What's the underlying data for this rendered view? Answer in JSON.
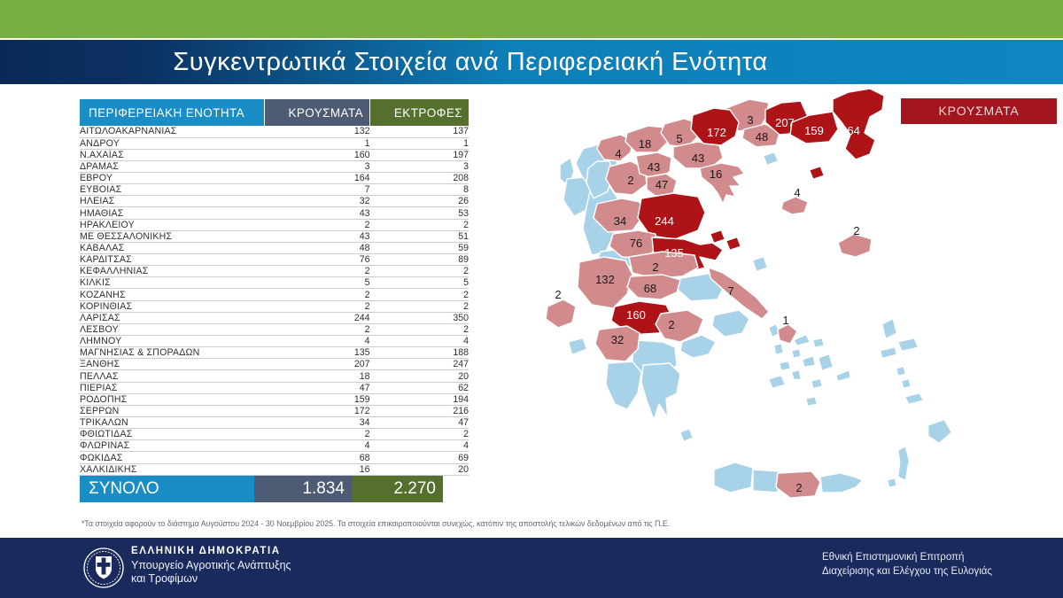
{
  "header": {
    "title": "Συγκεντρωτικά Στοιχεία ανά Περιφερειακή Ενότητα"
  },
  "chart_data": {
    "type": "table",
    "title": "Συγκεντρωτικά Στοιχεία ανά Περιφερειακή Ενότητα",
    "columns": [
      "ΠΕΡΙΦΕΡΕΙΑΚΗ ΕΝΟΤΗΤΑ",
      "ΚΡΟΥΣΜΑΤΑ",
      "ΕΚΤΡΟΦΕΣ"
    ],
    "rows": [
      [
        "ΑΙΤΩΛΟΑΚΑΡΝΑΝΙΑΣ",
        132,
        137
      ],
      [
        "ΑΝΔΡΟΥ",
        1,
        1
      ],
      [
        "Ν.ΑΧΑΪΑΣ",
        160,
        197
      ],
      [
        "ΔΡΑΜΑΣ",
        3,
        3
      ],
      [
        "ΕΒΡΟΥ",
        164,
        208
      ],
      [
        "ΕΥΒΟΙΑΣ",
        7,
        8
      ],
      [
        "ΗΛΕΙΑΣ",
        32,
        26
      ],
      [
        "ΗΜΑΘΙΑΣ",
        43,
        53
      ],
      [
        "ΗΡΑΚΛΕΙΟΥ",
        2,
        2
      ],
      [
        "ΜΕ ΘΕΣΣΑΛΟΝΙΚΗΣ",
        43,
        51
      ],
      [
        "ΚΑΒΑΛΑΣ",
        48,
        59
      ],
      [
        "ΚΑΡΔΙΤΣΑΣ",
        76,
        89
      ],
      [
        "ΚΕΦΑΛΛΗΝΙΑΣ",
        2,
        2
      ],
      [
        "ΚΙΛΚΙΣ",
        5,
        5
      ],
      [
        "ΚΟΖΑΝΗΣ",
        2,
        2
      ],
      [
        "ΚΟΡΙΝΘΙΑΣ",
        2,
        2
      ],
      [
        "ΛΑΡΙΣΑΣ",
        244,
        350
      ],
      [
        "ΛΕΣΒΟΥ",
        2,
        2
      ],
      [
        "ΛΗΜΝΟΥ",
        4,
        4
      ],
      [
        "ΜΑΓΝΗΣΙΑΣ & ΣΠΟΡΑΔΩΝ",
        135,
        188
      ],
      [
        "ΞΑΝΘΗΣ",
        207,
        247
      ],
      [
        "ΠΕΛΛΑΣ",
        18,
        20
      ],
      [
        "ΠΙΕΡΙΑΣ",
        47,
        62
      ],
      [
        "ΡΟΔΟΠΗΣ",
        159,
        194
      ],
      [
        "ΣΕΡΡΩΝ",
        172,
        216
      ],
      [
        "ΤΡΙΚΑΛΩΝ",
        34,
        47
      ],
      [
        "ΦΘΙΩΤΙΔΑΣ",
        2,
        2
      ],
      [
        "ΦΛΩΡΙΝΑΣ",
        4,
        4
      ],
      [
        "ΦΩΚΙΔΑΣ",
        68,
        69
      ],
      [
        "ΧΑΛΚΙΔΙΚΗΣ",
        16,
        20
      ]
    ],
    "total_row": [
      "ΣΥΝΟΛΟ",
      "1.834",
      "2.270"
    ],
    "map_legend": "ΚΡΟΥΣΜΑΤΑ",
    "map_color_scale": {
      "no_cases": "#A7D2E8",
      "cases": "#D28B8D",
      "high_cases": "#AE1317"
    }
  },
  "map": {
    "legend_label": "ΚΡΟΥΣΜΑΤΑ",
    "levels": {
      "none": "#A7D2E8",
      "mid": "#D28B8D",
      "high": "#AE1317"
    },
    "regions": {
      "florinas": {
        "value": 4,
        "level": "mid"
      },
      "pellas": {
        "value": 18,
        "level": "mid"
      },
      "kilkis": {
        "value": 5,
        "level": "mid"
      },
      "kozanis": {
        "value": 2,
        "level": "mid"
      },
      "imathias": {
        "value": 43,
        "level": "mid"
      },
      "thessalonikis": {
        "value": 43,
        "level": "mid"
      },
      "pierias": {
        "value": 47,
        "level": "mid"
      },
      "chalkidikis": {
        "value": 16,
        "level": "mid"
      },
      "dramas": {
        "value": 3,
        "level": "mid"
      },
      "kavalas": {
        "value": 48,
        "level": "mid"
      },
      "serron": {
        "value": 172,
        "level": "high"
      },
      "xanthis": {
        "value": 207,
        "level": "high"
      },
      "rodopis": {
        "value": 159,
        "level": "high"
      },
      "evrou": {
        "value": 164,
        "level": "high"
      },
      "samothraki": {
        "level": "high"
      },
      "limnou": {
        "value": 4,
        "level": "mid"
      },
      "lesvou": {
        "value": 2,
        "level": "mid"
      },
      "trikalon": {
        "value": 34,
        "level": "mid"
      },
      "larisas": {
        "value": 244,
        "level": "high"
      },
      "karditsas": {
        "value": 76,
        "level": "mid"
      },
      "magnisias": {
        "value": 135,
        "level": "high"
      },
      "sporades-1": {
        "level": "high"
      },
      "sporades-2": {
        "level": "high"
      },
      "fthiotidas": {
        "value": 2,
        "level": "mid"
      },
      "aitoloakarnanias": {
        "value": 132,
        "level": "mid"
      },
      "fokidas": {
        "value": 68,
        "level": "mid"
      },
      "evias": {
        "value": 7,
        "level": "mid"
      },
      "achaias": {
        "value": 160,
        "level": "high"
      },
      "korinthias": {
        "value": 2,
        "level": "mid"
      },
      "ilias": {
        "value": 32,
        "level": "mid"
      },
      "kefallinias": {
        "value": 2,
        "level": "mid"
      },
      "androu": {
        "value": 1,
        "level": "mid"
      },
      "irakleiou": {
        "value": 2,
        "level": "mid"
      }
    }
  },
  "footnote": "*Τα στοιχεία αφορούν το διάστημα Αυγούστου 2024 - 30 Νοεμβρίου 2025. Τα στοιχεία επικαιροποιούνται συνεχώς, κατόπιν της αποστολής τελικών δεδομένων από τις Π.Ε.",
  "footer": {
    "ministry_line1": "ΕΛΛΗΝΙΚΗ ΔΗΜΟΚΡΑΤΙΑ",
    "ministry_line2": "Υπουργείο Αγροτικής Ανάπτυξης",
    "ministry_line3": "και Τροφίμων",
    "committee_line1": "Εθνική Επιστημονική Επιτροπή",
    "committee_line2": "Διαχείρισης και Ελέγχου της Ευλογιάς"
  },
  "colors": {
    "accent_green": "#76B044",
    "band_navy": "#0A2A56",
    "band_cyan": "#0D86C2",
    "header_blue": "#1A8CC6",
    "header_slate": "#4D5C74",
    "header_olive": "#55702D",
    "legend_red": "#A3161F",
    "footer_navy": "#1A2A5C"
  }
}
